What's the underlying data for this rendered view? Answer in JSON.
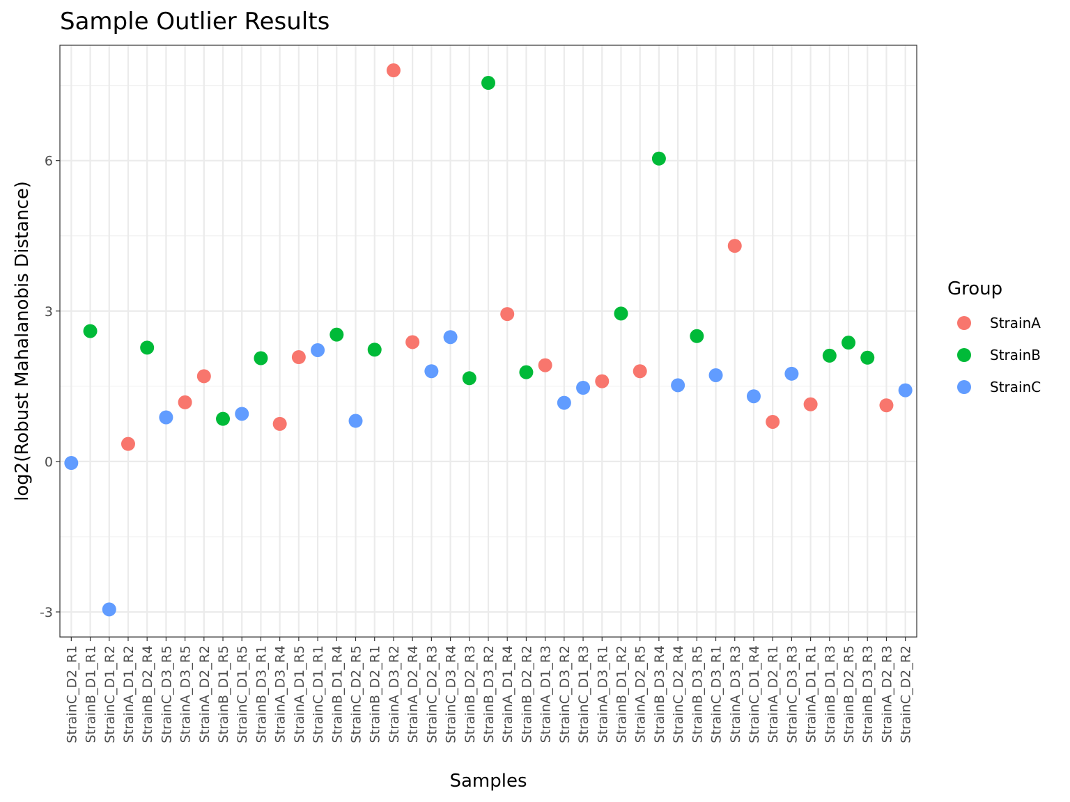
{
  "chart_data": {
    "type": "scatter",
    "title": "Sample Outlier Results",
    "xlabel": "Samples",
    "ylabel": "log2(Robust Mahalanobis Distance)",
    "ylim": [
      -3.5,
      8.3
    ],
    "yticks": [
      -3,
      0,
      3,
      6
    ],
    "ytick_labels": [
      "-3",
      "0",
      "3",
      "6"
    ],
    "grid": true,
    "legend": {
      "title": "Group",
      "position": "right",
      "entries": [
        {
          "name": "StrainA",
          "color": "#F8766D"
        },
        {
          "name": "StrainB",
          "color": "#00BA38"
        },
        {
          "name": "StrainC",
          "color": "#619CFF"
        }
      ]
    },
    "points": [
      {
        "x": "StrainC_D2_R1",
        "y": -0.03,
        "group": "StrainC"
      },
      {
        "x": "StrainB_D1_R1",
        "y": 2.6,
        "group": "StrainB"
      },
      {
        "x": "StrainC_D1_R2",
        "y": -2.95,
        "group": "StrainC"
      },
      {
        "x": "StrainA_D1_R2",
        "y": 0.35,
        "group": "StrainA"
      },
      {
        "x": "StrainB_D2_R4",
        "y": 2.27,
        "group": "StrainB"
      },
      {
        "x": "StrainC_D3_R5",
        "y": 0.88,
        "group": "StrainC"
      },
      {
        "x": "StrainA_D3_R5",
        "y": 1.18,
        "group": "StrainA"
      },
      {
        "x": "StrainA_D2_R2",
        "y": 1.7,
        "group": "StrainA"
      },
      {
        "x": "StrainB_D1_R5",
        "y": 0.85,
        "group": "StrainB"
      },
      {
        "x": "StrainC_D1_R5",
        "y": 0.95,
        "group": "StrainC"
      },
      {
        "x": "StrainB_D3_R1",
        "y": 2.06,
        "group": "StrainB"
      },
      {
        "x": "StrainA_D3_R4",
        "y": 0.75,
        "group": "StrainA"
      },
      {
        "x": "StrainA_D1_R5",
        "y": 2.08,
        "group": "StrainA"
      },
      {
        "x": "StrainC_D1_R1",
        "y": 2.22,
        "group": "StrainC"
      },
      {
        "x": "StrainB_D1_R4",
        "y": 2.53,
        "group": "StrainB"
      },
      {
        "x": "StrainC_D2_R5",
        "y": 0.81,
        "group": "StrainC"
      },
      {
        "x": "StrainB_D2_R1",
        "y": 2.23,
        "group": "StrainB"
      },
      {
        "x": "StrainA_D3_R2",
        "y": 7.8,
        "group": "StrainA"
      },
      {
        "x": "StrainA_D2_R4",
        "y": 2.38,
        "group": "StrainA"
      },
      {
        "x": "StrainC_D2_R3",
        "y": 1.8,
        "group": "StrainC"
      },
      {
        "x": "StrainC_D3_R4",
        "y": 2.48,
        "group": "StrainC"
      },
      {
        "x": "StrainB_D2_R3",
        "y": 1.66,
        "group": "StrainB"
      },
      {
        "x": "StrainB_D3_R2",
        "y": 7.55,
        "group": "StrainB"
      },
      {
        "x": "StrainA_D1_R4",
        "y": 2.94,
        "group": "StrainA"
      },
      {
        "x": "StrainB_D2_R2",
        "y": 1.78,
        "group": "StrainB"
      },
      {
        "x": "StrainA_D1_R3",
        "y": 1.92,
        "group": "StrainA"
      },
      {
        "x": "StrainC_D3_R2",
        "y": 1.17,
        "group": "StrainC"
      },
      {
        "x": "StrainC_D1_R3",
        "y": 1.47,
        "group": "StrainC"
      },
      {
        "x": "StrainA_D3_R1",
        "y": 1.6,
        "group": "StrainA"
      },
      {
        "x": "StrainB_D1_R2",
        "y": 2.95,
        "group": "StrainB"
      },
      {
        "x": "StrainA_D2_R5",
        "y": 1.8,
        "group": "StrainA"
      },
      {
        "x": "StrainB_D3_R4",
        "y": 6.04,
        "group": "StrainB"
      },
      {
        "x": "StrainC_D2_R4",
        "y": 1.52,
        "group": "StrainC"
      },
      {
        "x": "StrainB_D3_R5",
        "y": 2.5,
        "group": "StrainB"
      },
      {
        "x": "StrainC_D3_R1",
        "y": 1.72,
        "group": "StrainC"
      },
      {
        "x": "StrainA_D3_R3",
        "y": 4.3,
        "group": "StrainA"
      },
      {
        "x": "StrainC_D1_R4",
        "y": 1.3,
        "group": "StrainC"
      },
      {
        "x": "StrainA_D2_R1",
        "y": 0.79,
        "group": "StrainA"
      },
      {
        "x": "StrainC_D3_R3",
        "y": 1.75,
        "group": "StrainC"
      },
      {
        "x": "StrainA_D1_R1",
        "y": 1.14,
        "group": "StrainA"
      },
      {
        "x": "StrainB_D1_R3",
        "y": 2.11,
        "group": "StrainB"
      },
      {
        "x": "StrainB_D2_R5",
        "y": 2.37,
        "group": "StrainB"
      },
      {
        "x": "StrainB_D3_R3",
        "y": 2.07,
        "group": "StrainB"
      },
      {
        "x": "StrainA_D2_R3",
        "y": 1.12,
        "group": "StrainA"
      },
      {
        "x": "StrainC_D2_R2",
        "y": 1.42,
        "group": "StrainC"
      }
    ]
  }
}
